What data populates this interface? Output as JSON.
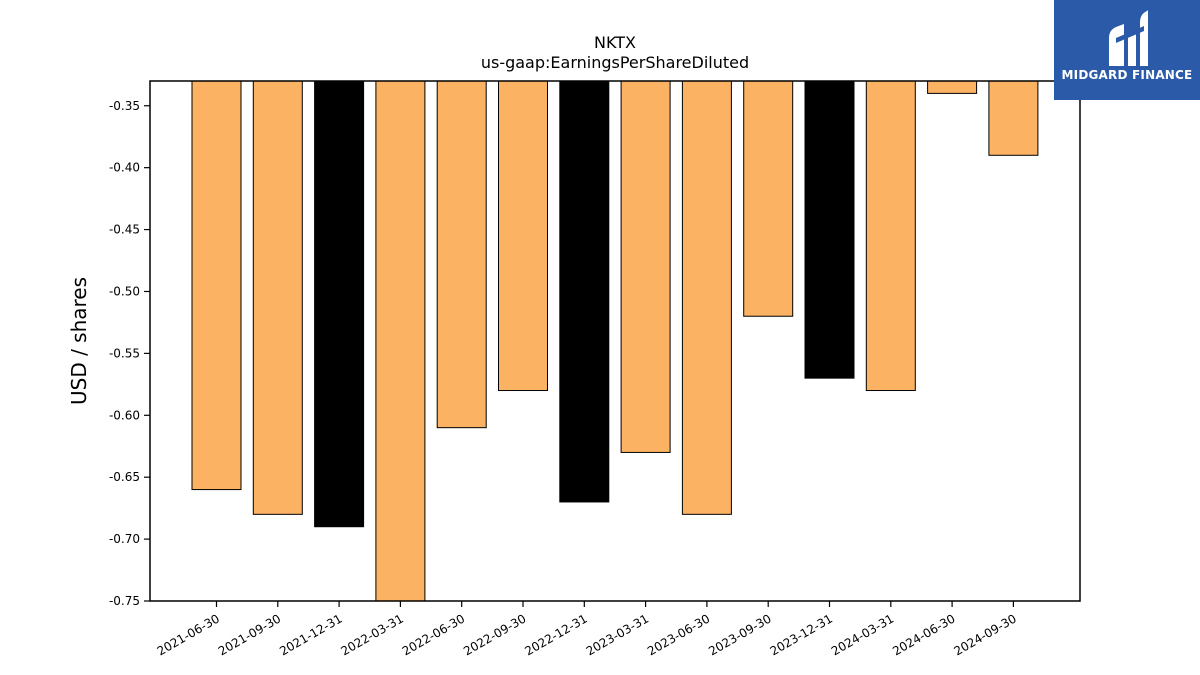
{
  "chart_data": {
    "type": "bar",
    "title": "NKTX",
    "subtitle": "us-gaap:EarningsPerShareDiluted",
    "xlabel": "",
    "ylabel": "USD / shares",
    "ylim": [
      -0.75,
      -0.33
    ],
    "yticks": [
      "-0.35",
      "-0.40",
      "-0.45",
      "-0.50",
      "-0.55",
      "-0.60",
      "-0.65",
      "-0.70",
      "-0.75"
    ],
    "categories": [
      "2021-06-30",
      "2021-09-30",
      "2021-12-31",
      "2022-03-31",
      "2022-06-30",
      "2022-09-30",
      "2022-12-31",
      "2023-03-31",
      "2023-06-30",
      "2023-09-30",
      "2023-12-31",
      "2024-03-31",
      "2024-06-30",
      "2024-09-30"
    ],
    "values": [
      -0.66,
      -0.68,
      -0.69,
      -0.75,
      -0.61,
      -0.58,
      -0.67,
      -0.63,
      -0.68,
      -0.52,
      -0.57,
      -0.58,
      -0.34,
      -0.39
    ],
    "bar_colors": [
      "#fbb262",
      "#fbb262",
      "#000000",
      "#fbb262",
      "#fbb262",
      "#fbb262",
      "#000000",
      "#fbb262",
      "#fbb262",
      "#fbb262",
      "#000000",
      "#fbb262",
      "#fbb262",
      "#fbb262"
    ],
    "grid": false,
    "legend": "none"
  },
  "logo": {
    "text": "MIDGARD FINANCE",
    "background": "#2a5aa8"
  }
}
